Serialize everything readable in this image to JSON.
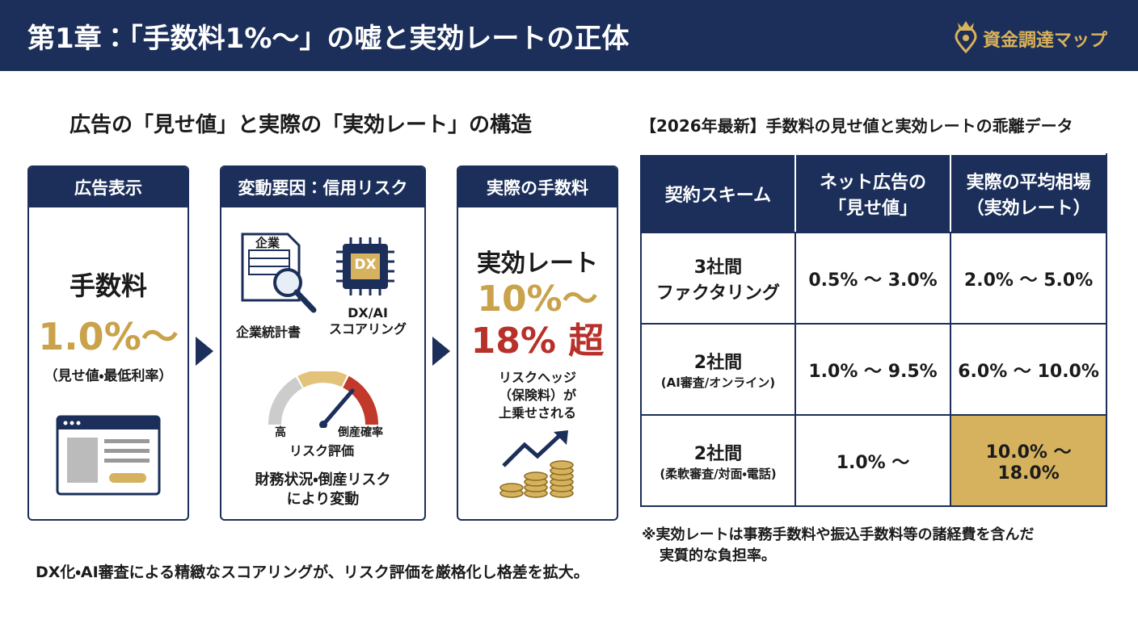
{
  "header": {
    "title": "第1章：「手数料1%〜」の嘘と実効レートの正体",
    "logo": "資金調達マップ"
  },
  "left": {
    "heading": "広告の「見せ値」と実際の「実効レート」の構造",
    "cards": [
      {
        "title": "広告表示",
        "label": "手数料",
        "value": "1.0%〜",
        "note": "（見せ値・最低利率）"
      },
      {
        "title": "変動要因：信用リスク",
        "doc_tag": "企業",
        "doc_label": "企業統計書",
        "chip": "DX",
        "chip_label": [
          "DX/AI",
          "スコアリング"
        ],
        "gauge_low": "高",
        "gauge_high": "倒産確率",
        "gauge_label": "リスク評価",
        "note": [
          "財務状況・倒産リスク",
          "により変動"
        ]
      },
      {
        "title": "実際の手数料",
        "label": "実効レート",
        "value_low": "10%〜",
        "value_high": "18% 超",
        "note": [
          "リスクヘッジ",
          "（保険料）が",
          "上乗せされる"
        ]
      }
    ],
    "footer": "DX化・AI審査による精緻なスコアリングが、リスク評価を厳格化し格差を拡大。"
  },
  "right": {
    "heading": "【2026年最新】手数料の見せ値と実効レートの乖離データ",
    "table": {
      "header": [
        [
          "契約スキーム"
        ],
        [
          "ネット広告の",
          "「見せ値」"
        ],
        [
          "実際の平均相場",
          "（実効レート）"
        ]
      ],
      "rows": [
        [
          [
            "3社間",
            "ファクタリング"
          ],
          "0.5% 〜 3.0%",
          "2.0% 〜 5.0%"
        ],
        [
          [
            "2社間",
            "(AI審査/オンライン)"
          ],
          "1.0% 〜 9.5%",
          "6.0% 〜 10.0%"
        ],
        [
          [
            "2社間",
            "(柔軟審査/対面・電話)"
          ],
          "1.0% 〜",
          "10.0% 〜 18.0%"
        ]
      ]
    },
    "note": [
      "※実効レートは事務手数料や振込手数料等の諸経費を含んだ",
      "実質的な負担率。"
    ]
  }
}
